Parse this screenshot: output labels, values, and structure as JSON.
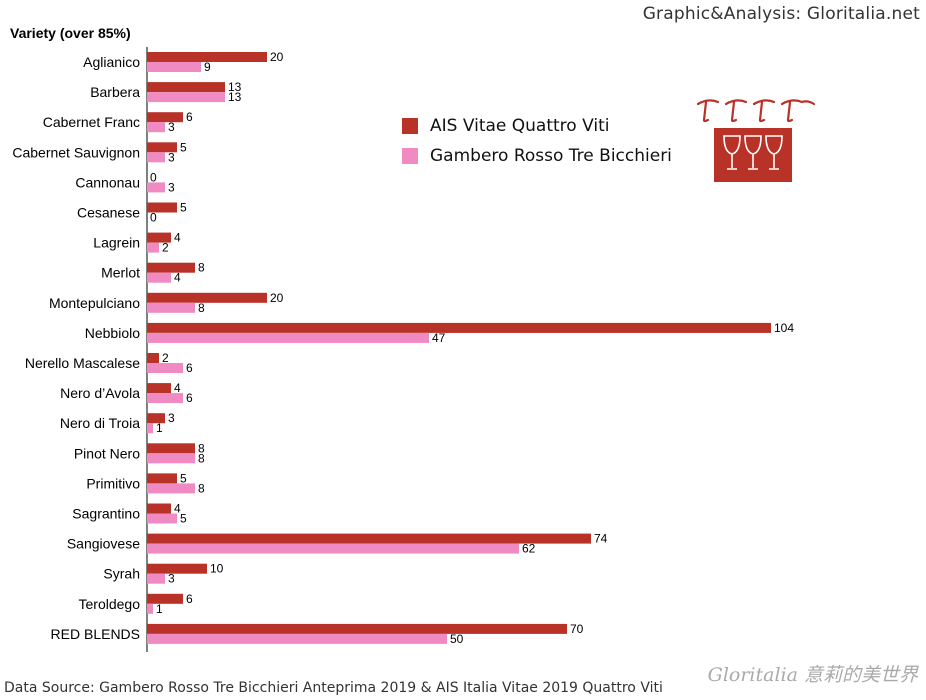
{
  "credit": "Graphic&Analysis: Gloritalia.net",
  "source_note": "Data Source: Gambero Rosso Tre Bicchieri Anteprima 2019 & AIS Italia Vitae 2019 Quattro Viti",
  "signature": "Gloritalia 意莉的美世界",
  "colors": {
    "ais": "#b83227",
    "gambero": "#f08ac3",
    "logo_red": "#b83227"
  },
  "chart_data": {
    "type": "bar",
    "orientation": "horizontal",
    "title": "Variety (over 85%)",
    "categories": [
      "Aglianico",
      "Barbera",
      "Cabernet Franc",
      "Cabernet Sauvignon",
      "Cannonau",
      "Cesanese",
      "Lagrein",
      "Merlot",
      "Montepulciano",
      "Nebbiolo",
      "Nerello Mascalese",
      "Nero d’Avola",
      "Nero di Troia",
      "Pinot Nero",
      "Primitivo",
      "Sagrantino",
      "Sangiovese",
      "Syrah",
      "Teroldego",
      "RED BLENDS"
    ],
    "series": [
      {
        "name": "AIS Vitae Quattro Viti",
        "color": "#b83227",
        "values": [
          20,
          13,
          6,
          5,
          0,
          5,
          4,
          8,
          20,
          104,
          2,
          4,
          3,
          8,
          5,
          4,
          74,
          10,
          6,
          70
        ]
      },
      {
        "name": "Gambero Rosso Tre Bicchieri",
        "color": "#f08ac3",
        "values": [
          9,
          13,
          3,
          3,
          3,
          0,
          2,
          4,
          8,
          47,
          6,
          6,
          1,
          8,
          8,
          5,
          62,
          3,
          1,
          50
        ]
      }
    ],
    "xlim": [
      0,
      104
    ],
    "legend_position": "upper-right",
    "grid": false
  }
}
